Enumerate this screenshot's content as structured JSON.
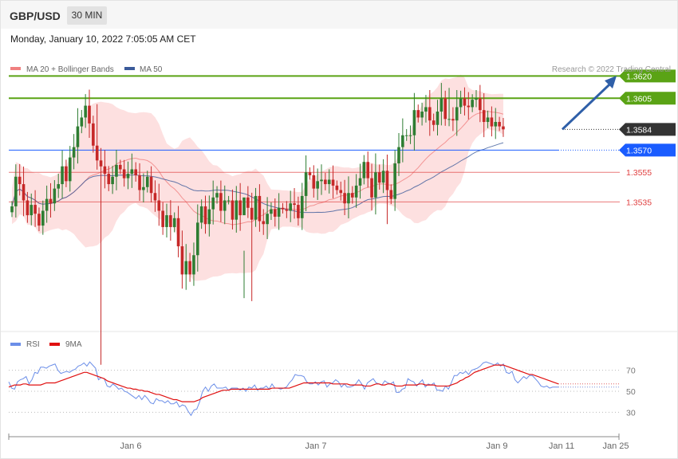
{
  "header": {
    "symbol": "GBP/USD",
    "timeframe": "30 MIN"
  },
  "date_text": "Monday, January 10, 2022 7:05:05 AM CET",
  "colors": {
    "up": "#2e7d32",
    "down": "#c62828",
    "bollinger_fill": "#fde0e0",
    "ma20": "#f08080",
    "ma50": "#3b5a9a",
    "green_line": "#5aa315",
    "blue_line": "#1a5cff",
    "red_line": "#e04040",
    "price_tag": "#333333",
    "rsi": "#6b8ee8",
    "rsi_ma": "#e01010",
    "arrow": "#2f5fa8"
  },
  "chart_data": [
    {
      "type": "candlestick",
      "legend": [
        {
          "name": "MA 20 + Bollinger Bands",
          "color": "#f08080"
        },
        {
          "name": "MA 50",
          "color": "#3b5a9a"
        }
      ],
      "credit": "Research © 2022 Trading Central",
      "ylim": [
        1.3441,
        1.3631
      ],
      "x_ticks": [
        "Jan 6",
        "Jan 7",
        "Jan 9",
        "Jan 11",
        "Jan 25"
      ],
      "levels": [
        {
          "value": 1.362,
          "label": "1.3620",
          "kind": "resistance"
        },
        {
          "value": 1.3605,
          "label": "1.3605",
          "kind": "resistance"
        },
        {
          "value": 1.3584,
          "label": "1.3584",
          "kind": "current"
        },
        {
          "value": 1.357,
          "label": "1.3570",
          "kind": "pivot"
        },
        {
          "value": 1.3555,
          "label": "1.3555",
          "kind": "support"
        },
        {
          "value": 1.3535,
          "label": "1.3535",
          "kind": "support"
        }
      ],
      "close": [
        1.3532,
        1.3552,
        1.3547,
        1.3536,
        1.3526,
        1.3533,
        1.3527,
        1.3519,
        1.3529,
        1.3537,
        1.3534,
        1.3544,
        1.3547,
        1.3559,
        1.3549,
        1.3565,
        1.3572,
        1.3586,
        1.3592,
        1.36,
        1.3588,
        1.3573,
        1.3563,
        1.3559,
        1.3554,
        1.3547,
        1.3552,
        1.356,
        1.3557,
        1.3551,
        1.3554,
        1.3557,
        1.3553,
        1.3543,
        1.3545,
        1.3552,
        1.3541,
        1.3536,
        1.3529,
        1.3518,
        1.3526,
        1.3518,
        1.3524,
        1.3505,
        1.3486,
        1.3495,
        1.3486,
        1.3499,
        1.3521,
        1.3532,
        1.352,
        1.353,
        1.3538,
        1.3541,
        1.3529,
        1.3536,
        1.3536,
        1.3523,
        1.3536,
        1.3526,
        1.3538,
        1.3531,
        1.3523,
        1.3539,
        1.3522,
        1.352,
        1.3527,
        1.353,
        1.3525,
        1.3531,
        1.353,
        1.3529,
        1.3534,
        1.3533,
        1.3524,
        1.3539,
        1.3555,
        1.3553,
        1.3544,
        1.3549,
        1.355,
        1.3547,
        1.355,
        1.3546,
        1.3543,
        1.3541,
        1.3534,
        1.3541,
        1.3538,
        1.3546,
        1.3551,
        1.3562,
        1.3551,
        1.3538,
        1.3555,
        1.3548,
        1.3556,
        1.3543,
        1.3537,
        1.3561,
        1.3572,
        1.358,
        1.358,
        1.358,
        1.3597,
        1.3592,
        1.3596,
        1.3599,
        1.359,
        1.3587,
        1.3596,
        1.3605,
        1.3591,
        1.3591,
        1.359,
        1.3599,
        1.3605,
        1.36,
        1.3599,
        1.3604,
        1.3605,
        1.3597,
        1.3589,
        1.3592,
        1.3586,
        1.3589,
        1.3586,
        1.3584
      ],
      "rsi": {
        "name": "RSI",
        "ma_name": "9MA",
        "ylim": [
          12,
          88
        ],
        "ticks": [
          70,
          50,
          30
        ],
        "rsi": [
          59,
          53,
          52,
          59,
          61,
          62,
          64,
          57,
          61,
          68,
          67,
          73,
          73,
          72,
          74,
          75,
          76,
          70,
          67,
          68,
          69,
          68,
          70,
          71,
          74,
          75,
          77,
          74,
          78,
          75,
          72,
          61,
          63,
          62,
          55,
          54,
          57,
          55,
          52,
          53,
          50,
          49,
          47,
          45,
          43,
          46,
          42,
          46,
          43,
          39,
          38,
          43,
          41,
          41,
          39,
          41,
          38,
          38,
          40,
          35,
          37,
          36,
          31,
          27,
          32,
          33,
          40,
          50,
          54,
          50,
          55,
          57,
          53,
          53,
          53,
          54,
          51,
          53,
          53,
          53,
          51,
          53,
          50,
          54,
          53,
          56,
          51,
          53,
          53,
          55,
          52,
          57,
          53,
          53,
          52,
          53,
          54,
          58,
          61,
          66,
          65,
          65,
          64,
          59,
          57,
          57,
          59,
          56,
          59,
          60,
          54,
          57,
          58,
          61,
          59,
          54,
          57,
          54,
          54,
          55,
          57,
          61,
          57,
          52,
          58,
          60,
          62,
          58,
          57,
          56,
          60,
          58,
          57,
          59,
          49,
          49,
          52,
          53,
          62,
          60,
          59,
          55,
          58,
          61,
          54,
          57,
          56,
          58,
          51,
          51,
          50,
          55,
          52,
          58,
          65,
          65,
          68,
          67,
          69,
          66,
          70,
          71,
          72,
          74,
          77,
          78,
          77,
          76,
          75,
          77,
          74,
          76,
          68,
          67,
          69,
          61,
          58,
          61,
          64,
          62,
          65,
          65,
          62,
          59,
          55,
          54,
          55,
          53,
          54,
          54,
          54
        ],
        "ma": [
          54,
          55,
          56,
          56,
          56,
          57,
          57,
          56,
          56,
          56,
          56,
          56,
          57,
          58,
          58,
          58,
          58,
          59,
          60,
          61,
          62,
          63,
          64,
          65,
          66,
          67,
          68,
          68,
          67,
          66,
          65,
          64,
          63,
          62,
          60,
          59,
          58,
          57,
          56,
          55,
          54,
          53,
          53,
          52,
          52,
          51,
          51,
          50,
          50,
          49,
          48,
          47,
          47,
          46,
          45,
          44,
          43,
          42,
          42,
          41,
          40,
          40,
          40,
          40,
          40,
          41,
          42,
          44,
          45,
          46,
          47,
          48,
          49,
          50,
          51,
          51,
          51,
          52,
          52,
          52,
          52,
          52,
          52,
          52,
          52,
          52,
          52,
          52,
          52,
          52,
          52,
          53,
          53,
          53,
          53,
          53,
          53,
          53,
          54,
          55,
          56,
          57,
          58,
          58,
          58,
          58,
          58,
          58,
          58,
          58,
          58,
          58,
          57,
          57,
          57,
          57,
          57,
          57,
          56,
          56,
          56,
          56,
          56,
          55,
          55,
          55,
          56,
          57,
          57,
          56,
          56,
          57,
          57,
          56,
          55,
          55,
          55,
          56,
          56,
          56,
          56,
          56,
          57,
          57,
          56,
          56,
          56,
          56,
          55,
          55,
          55,
          55,
          55,
          56,
          57,
          58,
          60,
          61,
          63,
          64,
          66,
          68,
          69,
          70,
          71,
          72,
          73,
          74,
          75,
          75,
          75,
          75,
          74,
          73,
          72,
          71,
          70,
          69,
          68,
          67,
          66,
          66,
          65,
          64,
          63,
          62,
          61,
          60,
          59,
          58,
          57
        ]
      }
    }
  ]
}
